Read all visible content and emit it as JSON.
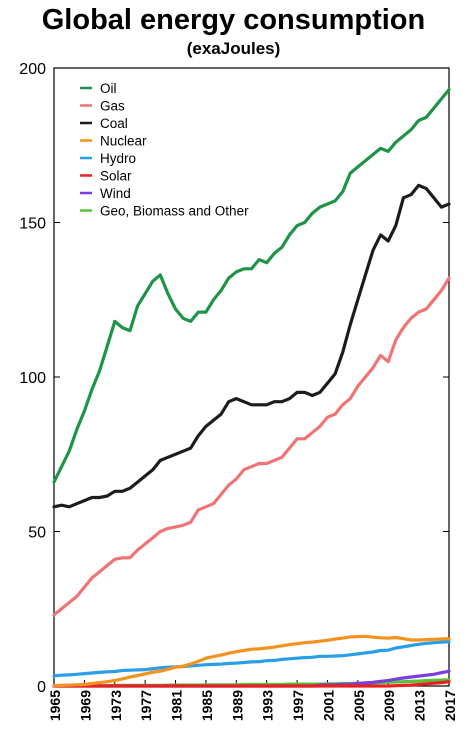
{
  "chart_data": {
    "type": "line",
    "title": "Global energy consumption",
    "subtitle": "(exaJoules)",
    "xlabel": "",
    "ylabel": "",
    "xlim": [
      1965,
      2017
    ],
    "ylim": [
      0,
      200
    ],
    "yticks": [
      0,
      50,
      100,
      150,
      200
    ],
    "xticks": [
      1965,
      1969,
      1973,
      1977,
      1981,
      1985,
      1989,
      1993,
      1997,
      2001,
      2005,
      2009,
      2013,
      2017
    ],
    "grid": false,
    "legend_position": "top-left",
    "x": [
      1965,
      1966,
      1967,
      1968,
      1969,
      1970,
      1971,
      1972,
      1973,
      1974,
      1975,
      1976,
      1977,
      1978,
      1979,
      1980,
      1981,
      1982,
      1983,
      1984,
      1985,
      1986,
      1987,
      1988,
      1989,
      1990,
      1991,
      1992,
      1993,
      1994,
      1995,
      1996,
      1997,
      1998,
      1999,
      2000,
      2001,
      2002,
      2003,
      2004,
      2005,
      2006,
      2007,
      2008,
      2009,
      2010,
      2011,
      2012,
      2013,
      2014,
      2015,
      2016,
      2017
    ],
    "series": [
      {
        "name": "Oil",
        "color": "#1e9448",
        "values": [
          66,
          71,
          76,
          83,
          89,
          96,
          102,
          110,
          118,
          116,
          115,
          123,
          127,
          131,
          133,
          127,
          122,
          119,
          118,
          121,
          121,
          125,
          128,
          132,
          134,
          135,
          135,
          138,
          137,
          140,
          142,
          146,
          149,
          150,
          153,
          155,
          156,
          157,
          160,
          166,
          168,
          170,
          172,
          174,
          173,
          176,
          178,
          180,
          183,
          184,
          187,
          190,
          193
        ]
      },
      {
        "name": "Gas",
        "color": "#f07474",
        "values": [
          23,
          25,
          27,
          29,
          32,
          35,
          37,
          39,
          41,
          41.5,
          41.5,
          44,
          46,
          48,
          50,
          51,
          51.5,
          52,
          53,
          57,
          58,
          59,
          62,
          65,
          67,
          70,
          71,
          72,
          72,
          73,
          74,
          77,
          80,
          80,
          82,
          84,
          87,
          88,
          91,
          93,
          97,
          100,
          103,
          107,
          105,
          112,
          116,
          119,
          121,
          122,
          125,
          128,
          132
        ]
      },
      {
        "name": "Coal",
        "color": "#1c1c1c",
        "values": [
          58,
          58.5,
          58,
          59,
          60,
          61,
          61,
          61.5,
          63,
          63,
          64,
          66,
          68,
          70,
          73,
          74,
          75,
          76,
          77,
          81,
          84,
          86,
          88,
          92,
          93,
          92,
          91,
          91,
          91,
          92,
          92,
          93,
          95,
          95,
          94,
          95,
          98,
          101,
          108,
          117,
          125,
          133,
          141,
          146,
          144,
          149,
          158,
          159,
          162,
          161,
          158,
          155,
          156
        ]
      },
      {
        "name": "Nuclear",
        "color": "#f5921e",
        "values": [
          0.1,
          0.2,
          0.3,
          0.4,
          0.5,
          0.8,
          1.1,
          1.4,
          1.8,
          2.3,
          2.9,
          3.4,
          3.9,
          4.5,
          4.8,
          5.4,
          6.1,
          6.4,
          7.1,
          8,
          9,
          9.5,
          10,
          10.6,
          11.1,
          11.5,
          11.9,
          12,
          12.3,
          12.6,
          13,
          13.4,
          13.7,
          14,
          14.2,
          14.5,
          14.8,
          15.2,
          15.5,
          15.9,
          16,
          16.1,
          15.8,
          15.6,
          15.5,
          15.7,
          15.3,
          14.9,
          14.9,
          15,
          15.1,
          15.2,
          15.3
        ]
      },
      {
        "name": "Hydro",
        "color": "#2a9ee8",
        "values": [
          3.3,
          3.5,
          3.6,
          3.8,
          4,
          4.2,
          4.4,
          4.6,
          4.7,
          5,
          5.1,
          5.2,
          5.3,
          5.6,
          5.9,
          6.1,
          6.2,
          6.3,
          6.5,
          6.7,
          6.9,
          7,
          7.1,
          7.3,
          7.4,
          7.6,
          7.8,
          7.9,
          8.2,
          8.3,
          8.6,
          8.8,
          9,
          9.2,
          9.3,
          9.6,
          9.6,
          9.7,
          9.8,
          10.1,
          10.4,
          10.7,
          11,
          11.5,
          11.6,
          12.3,
          12.7,
          13.1,
          13.5,
          13.8,
          14,
          14.2,
          14.3
        ]
      },
      {
        "name": "Solar",
        "color": "#e8201f",
        "values": [
          0,
          0,
          0,
          0,
          0,
          0,
          0,
          0,
          0,
          0,
          0,
          0,
          0,
          0,
          0,
          0,
          0,
          0,
          0,
          0,
          0,
          0,
          0,
          0,
          0,
          0,
          0,
          0,
          0,
          0,
          0,
          0,
          0,
          0,
          0,
          0,
          0,
          0,
          0,
          0,
          0,
          0,
          0,
          0,
          0,
          0.1,
          0.2,
          0.3,
          0.5,
          0.7,
          0.9,
          1.1,
          1.4
        ]
      },
      {
        "name": "Wind",
        "color": "#7a3ee0",
        "values": [
          0,
          0,
          0,
          0,
          0,
          0,
          0,
          0,
          0,
          0,
          0,
          0,
          0,
          0,
          0,
          0,
          0,
          0,
          0,
          0,
          0,
          0,
          0,
          0,
          0,
          0,
          0,
          0,
          0,
          0,
          0,
          0,
          0,
          0,
          0,
          0.3,
          0.35,
          0.4,
          0.5,
          0.6,
          0.8,
          1,
          1.2,
          1.5,
          1.8,
          2.2,
          2.6,
          2.9,
          3.2,
          3.5,
          3.8,
          4.3,
          4.8
        ]
      },
      {
        "name": "Geo, Biomass and Other",
        "color": "#55c23a",
        "values": [
          0.1,
          0.1,
          0.1,
          0.1,
          0.1,
          0.1,
          0.1,
          0.1,
          0.2,
          0.2,
          0.2,
          0.2,
          0.2,
          0.2,
          0.2,
          0.3,
          0.3,
          0.3,
          0.3,
          0.3,
          0.4,
          0.4,
          0.4,
          0.4,
          0.4,
          0.5,
          0.5,
          0.5,
          0.5,
          0.5,
          0.5,
          0.6,
          0.6,
          0.6,
          0.6,
          0.6,
          0.7,
          0.7,
          0.8,
          0.8,
          0.9,
          0.9,
          1,
          1.1,
          1.2,
          1.3,
          1.4,
          1.5,
          1.6,
          1.7,
          1.8,
          1.9,
          2.0
        ]
      }
    ]
  }
}
